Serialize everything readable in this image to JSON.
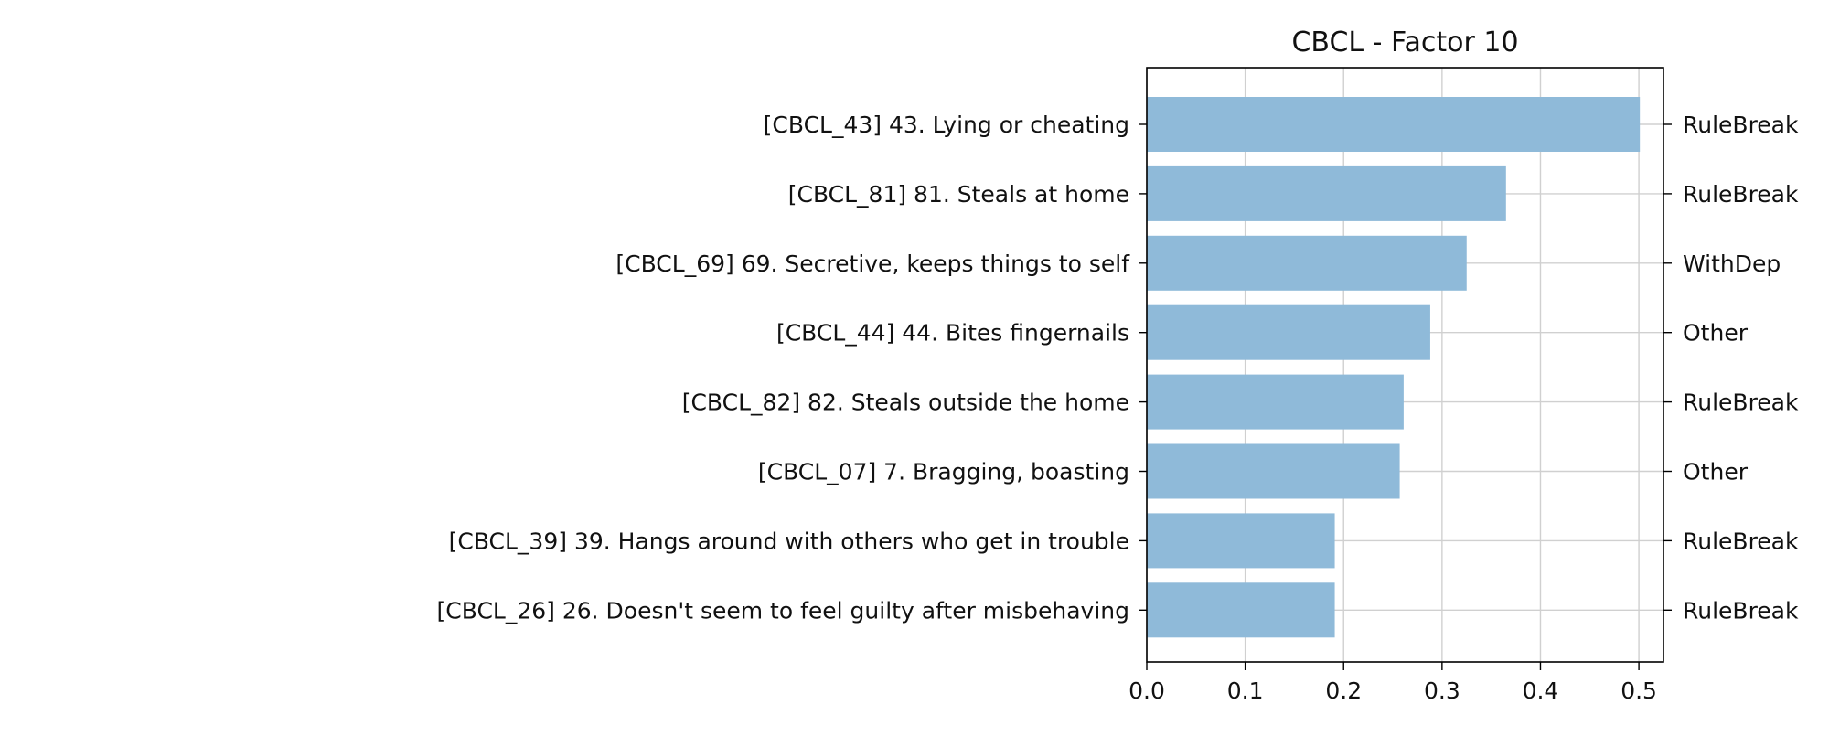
{
  "chart_data": {
    "type": "bar",
    "orientation": "horizontal",
    "title": "CBCL - Factor 10",
    "xlabel": "",
    "ylabel": "",
    "xlim": [
      0.0,
      0.525
    ],
    "xticks": [
      0.0,
      0.1,
      0.2,
      0.3,
      0.4,
      0.5
    ],
    "xtick_labels": [
      "0.0",
      "0.1",
      "0.2",
      "0.3",
      "0.4",
      "0.5"
    ],
    "grid": true,
    "bar_color": "#8fbad9",
    "categories": [
      "[CBCL_43] 43. Lying or cheating",
      "[CBCL_81] 81. Steals at home",
      "[CBCL_69] 69. Secretive, keeps things to self",
      "[CBCL_44] 44. Bites fingernails",
      "[CBCL_82] 82. Steals outside the home",
      "[CBCL_07] 7. Bragging, boasting",
      "[CBCL_39] 39. Hangs around with others who get in trouble",
      "[CBCL_26] 26. Doesn't seem to feel guilty after misbehaving"
    ],
    "values": [
      0.501,
      0.365,
      0.325,
      0.288,
      0.261,
      0.257,
      0.191,
      0.191
    ],
    "right_labels": [
      "RuleBreak",
      "RuleBreak",
      "WithDep",
      "Other",
      "RuleBreak",
      "Other",
      "RuleBreak",
      "RuleBreak"
    ]
  }
}
